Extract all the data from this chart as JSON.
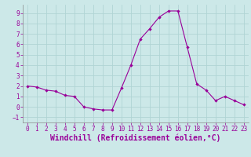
{
  "x": [
    0,
    1,
    2,
    3,
    4,
    5,
    6,
    7,
    8,
    9,
    10,
    11,
    12,
    13,
    14,
    15,
    16,
    17,
    18,
    19,
    20,
    21,
    22,
    23
  ],
  "y": [
    2.0,
    1.9,
    1.6,
    1.5,
    1.1,
    1.0,
    0.0,
    -0.2,
    -0.3,
    -0.3,
    1.8,
    4.0,
    6.5,
    7.5,
    8.6,
    9.2,
    9.2,
    5.7,
    2.2,
    1.6,
    0.6,
    1.0,
    0.6,
    0.2
  ],
  "line_color": "#990099",
  "marker": "D",
  "marker_size": 2.2,
  "bg_color": "#cce8e8",
  "grid_color": "#b0d4d4",
  "xlabel": "Windchill (Refroidissement éolien,°C)",
  "xlabel_color": "#990099",
  "tick_color": "#990099",
  "spine_color": "#888888",
  "ylim": [
    -1.5,
    9.8
  ],
  "xlim": [
    -0.5,
    23.5
  ],
  "yticks": [
    -1,
    0,
    1,
    2,
    3,
    4,
    5,
    6,
    7,
    8,
    9
  ],
  "xticks": [
    0,
    1,
    2,
    3,
    4,
    5,
    6,
    7,
    8,
    9,
    10,
    11,
    12,
    13,
    14,
    15,
    16,
    17,
    18,
    19,
    20,
    21,
    22,
    23
  ],
  "tick_fontsize": 5.5,
  "xlabel_fontsize": 7.0
}
